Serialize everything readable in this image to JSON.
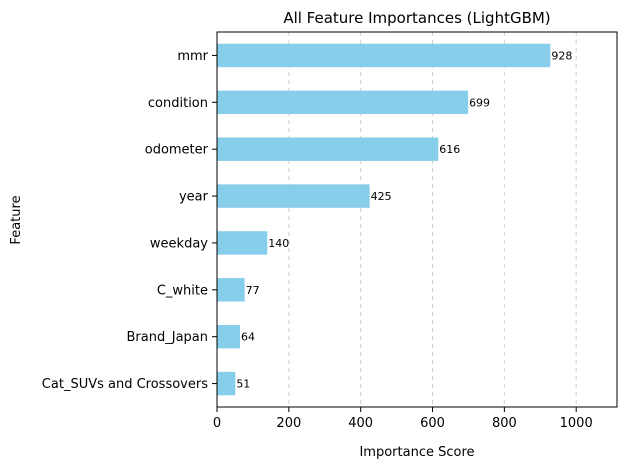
{
  "chart_data": {
    "type": "bar",
    "orientation": "horizontal",
    "title": "All Feature Importances (LightGBM)",
    "xlabel": "Importance Score",
    "ylabel": "Feature",
    "categories": [
      "mmr",
      "condition",
      "odometer",
      "year",
      "weekday",
      "C_white",
      "Brand_Japan",
      "Cat_SUVs and Crossovers"
    ],
    "values": [
      928,
      699,
      616,
      425,
      140,
      77,
      64,
      51
    ],
    "data_labels": [
      "928",
      "699",
      "616",
      "425",
      "140",
      "77",
      "64",
      "51"
    ],
    "xlim": [
      0,
      1113.6
    ],
    "xticks": [
      0,
      200,
      400,
      600,
      800,
      1000
    ],
    "xtick_labels": [
      "0",
      "200",
      "400",
      "600",
      "800",
      "1000"
    ],
    "grid": "x-dashed",
    "bar_color": "#87ceeb"
  }
}
